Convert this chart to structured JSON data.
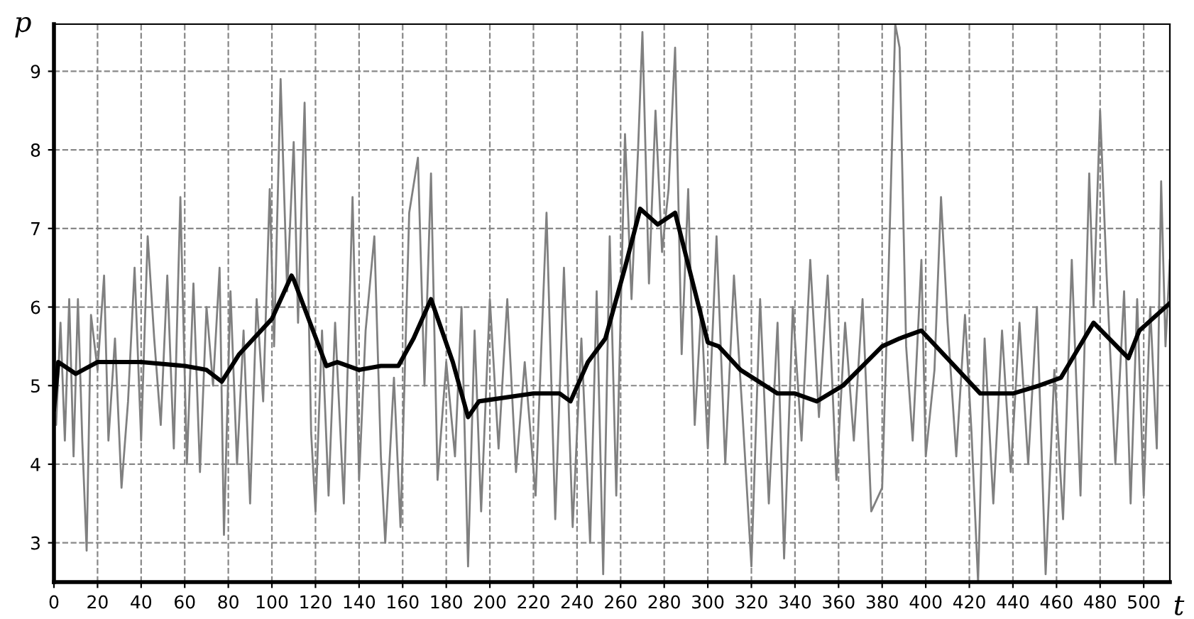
{
  "chart_data": {
    "type": "line",
    "xlabel": "t",
    "ylabel": "p",
    "xlim": [
      0,
      512
    ],
    "ylim": [
      2.5,
      9.6
    ],
    "xticks": [
      0,
      20,
      40,
      60,
      80,
      100,
      120,
      140,
      160,
      180,
      200,
      220,
      240,
      260,
      280,
      300,
      320,
      340,
      360,
      380,
      400,
      420,
      440,
      460,
      480,
      500
    ],
    "yticks": [
      3,
      4,
      5,
      6,
      7,
      8,
      9
    ],
    "grid": true,
    "marker": "none",
    "line_style": "solid",
    "series": [
      {
        "color": "#808080",
        "x": [
          0,
          1,
          3,
          5,
          7,
          9,
          11,
          13,
          15,
          17,
          20,
          23,
          25,
          28,
          31,
          34,
          37,
          40,
          43,
          46,
          49,
          52,
          55,
          58,
          61,
          64,
          67,
          70,
          73,
          76,
          78,
          81,
          84,
          87,
          90,
          93,
          96,
          99,
          101,
          104,
          107,
          110,
          112,
          115,
          118,
          120,
          123,
          126,
          129,
          133,
          137,
          140,
          143,
          147,
          150,
          152,
          156,
          159,
          163,
          167,
          170,
          173,
          176,
          180,
          184,
          187,
          190,
          193,
          196,
          200,
          204,
          208,
          212,
          216,
          221,
          226,
          230,
          234,
          238,
          242,
          246,
          249,
          252,
          255,
          258,
          262,
          265,
          268,
          270,
          273,
          276,
          279,
          282,
          285,
          288,
          291,
          294,
          297,
          300,
          304,
          308,
          312,
          316,
          320,
          324,
          328,
          332,
          335,
          339,
          343,
          347,
          351,
          355,
          359,
          363,
          367,
          371,
          375,
          380,
          383,
          386,
          388,
          391,
          394,
          398,
          400,
          404,
          407,
          410,
          414,
          418,
          421,
          424,
          427,
          431,
          435,
          439,
          443,
          447,
          451,
          455,
          459,
          463,
          467,
          471,
          475,
          477,
          480,
          483,
          487,
          491,
          494,
          497,
          500,
          503,
          506,
          508,
          510,
          512
        ],
        "values": [
          6.0,
          4.5,
          5.8,
          4.3,
          6.1,
          4.1,
          6.1,
          4.3,
          2.9,
          5.9,
          5.2,
          6.4,
          4.3,
          5.6,
          3.7,
          4.8,
          6.5,
          4.3,
          6.9,
          5.6,
          4.5,
          6.4,
          4.2,
          7.4,
          4.0,
          6.3,
          3.9,
          6.0,
          5.0,
          6.5,
          3.1,
          6.2,
          4.0,
          5.7,
          3.5,
          6.1,
          4.8,
          7.5,
          5.5,
          8.9,
          6.2,
          8.1,
          5.8,
          8.6,
          4.4,
          3.4,
          5.7,
          3.6,
          5.8,
          3.5,
          7.4,
          3.8,
          5.7,
          6.9,
          4.1,
          3.0,
          5.1,
          3.2,
          7.2,
          7.9,
          5.0,
          7.7,
          3.8,
          5.3,
          4.1,
          6.0,
          2.7,
          5.7,
          3.4,
          6.1,
          4.2,
          6.1,
          3.9,
          5.3,
          3.6,
          7.2,
          3.3,
          6.5,
          3.2,
          5.6,
          3.0,
          6.2,
          2.6,
          6.9,
          3.6,
          8.2,
          6.1,
          8.0,
          9.5,
          6.3,
          8.5,
          6.7,
          7.5,
          9.3,
          5.4,
          7.5,
          4.5,
          6.0,
          4.2,
          6.9,
          4.0,
          6.4,
          4.6,
          2.7,
          6.1,
          3.5,
          5.8,
          2.8,
          6.0,
          4.3,
          6.6,
          4.6,
          6.4,
          3.8,
          5.8,
          4.3,
          6.1,
          3.4,
          3.7,
          6.5,
          9.6,
          9.3,
          5.5,
          4.3,
          6.6,
          4.1,
          5.2,
          7.4,
          5.8,
          4.1,
          5.9,
          4.4,
          2.5,
          5.6,
          3.5,
          5.7,
          3.9,
          5.8,
          4.0,
          6.0,
          2.6,
          5.2,
          3.3,
          6.6,
          3.6,
          7.7,
          6.0,
          8.5,
          6.4,
          4.0,
          6.2,
          3.5,
          6.1,
          3.6,
          6.0,
          4.2,
          7.6,
          5.5,
          6.6
        ]
      },
      {
        "color": "#000000",
        "x": [
          0,
          2,
          10,
          20,
          40,
          60,
          70,
          77,
          85,
          100,
          109,
          110,
          125,
          130,
          140,
          150,
          158,
          165,
          173,
          183,
          190,
          195,
          220,
          232,
          237,
          245,
          253,
          262,
          269,
          277,
          285,
          300,
          305,
          315,
          332,
          340,
          350,
          362,
          380,
          388,
          398,
          425,
          440,
          452,
          462,
          477,
          493,
          498,
          512
        ],
        "values": [
          4.7,
          5.3,
          5.15,
          5.3,
          5.3,
          5.25,
          5.2,
          5.05,
          5.4,
          5.85,
          6.4,
          6.35,
          5.25,
          5.3,
          5.2,
          5.25,
          5.25,
          5.6,
          6.1,
          5.3,
          4.6,
          4.8,
          4.9,
          4.9,
          4.8,
          5.3,
          5.6,
          6.5,
          7.25,
          7.05,
          7.2,
          5.55,
          5.5,
          5.2,
          4.9,
          4.9,
          4.8,
          5.0,
          5.5,
          5.6,
          5.7,
          4.9,
          4.9,
          5.0,
          5.1,
          5.8,
          5.35,
          5.7,
          6.05
        ]
      }
    ]
  }
}
